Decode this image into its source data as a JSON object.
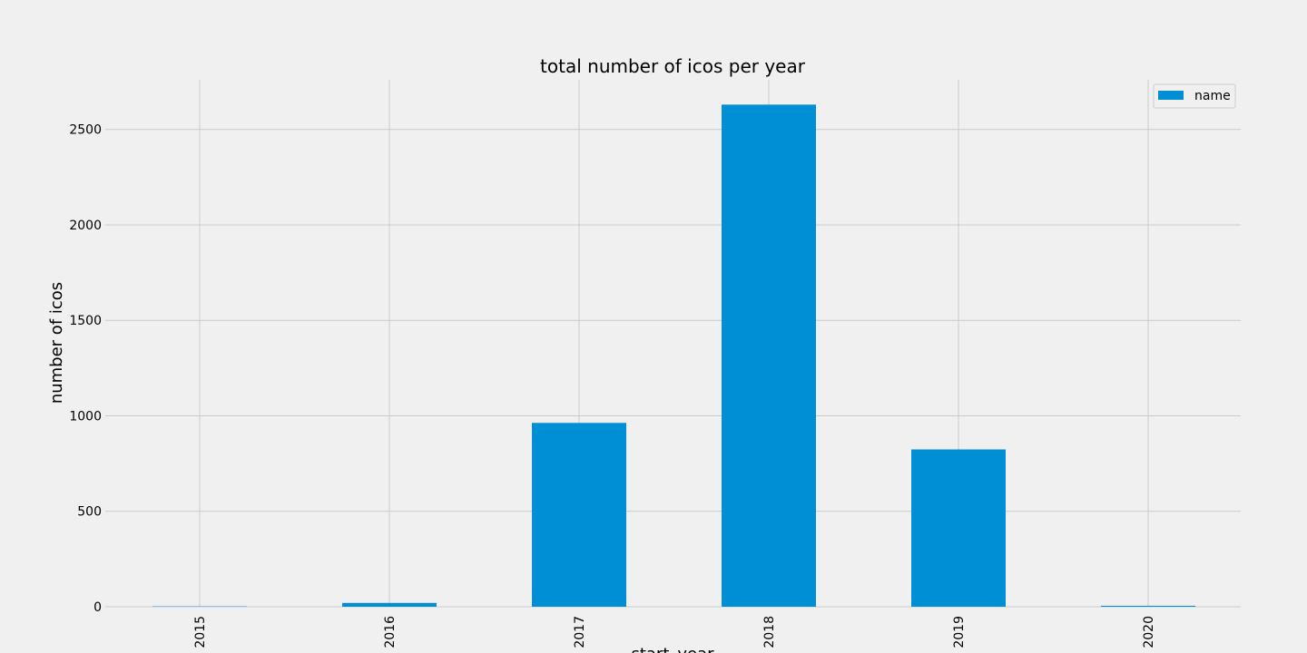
{
  "chart_data": {
    "type": "bar",
    "title": "total number of icos per year",
    "xlabel": "start_year",
    "ylabel": "number of icos",
    "categories": [
      "2015",
      "2016",
      "2017",
      "2018",
      "2019",
      "2020"
    ],
    "series": [
      {
        "name": "name",
        "values": [
          2,
          20,
          963,
          2630,
          824,
          5
        ],
        "color": "#008fd5"
      }
    ],
    "yticks": [
      0,
      500,
      1000,
      1500,
      2000,
      2500
    ],
    "ylim": [
      0,
      2760
    ],
    "grid": true,
    "legend_position": "top-right",
    "background": "#f0f0f0",
    "grid_color": "#cbcbcb"
  }
}
